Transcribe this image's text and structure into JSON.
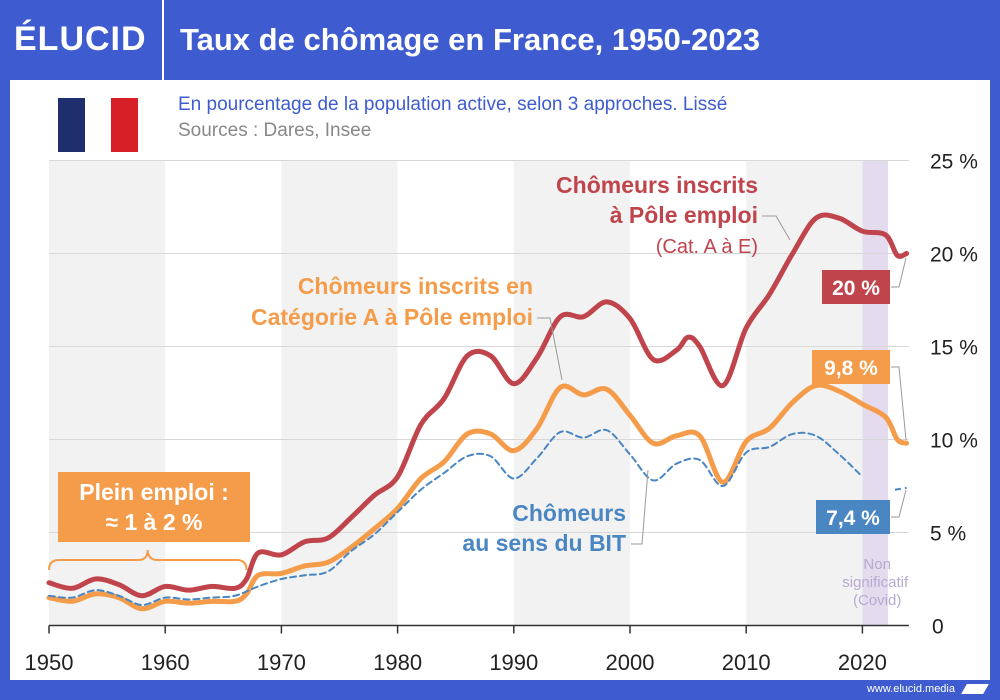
{
  "header": {
    "logo": "ÉLUCID",
    "title": "Taux de chômage en France, 1950-2023"
  },
  "footer": {
    "url": "www.elucid.media"
  },
  "flag": {
    "colors": [
      "#1f2f6e",
      "#ffffff",
      "#d61f26"
    ]
  },
  "chart_data": {
    "type": "line",
    "title": "Taux de chômage en France, 1950-2023",
    "subtitle": "En pourcentage de la population active, selon 3 approches. Lissé",
    "source": "Sources : Dares, Insee",
    "xlim": [
      1950,
      2024
    ],
    "ylim": [
      0,
      25
    ],
    "x_ticks": [
      "1950",
      "1960",
      "1970",
      "1980",
      "1990",
      "2000",
      "2010",
      "2020"
    ],
    "y_ticks": [
      "0",
      "5 %",
      "10 %",
      "15 %",
      "20 %",
      "25 %"
    ],
    "grid": true,
    "series": [
      {
        "name": "Chômeurs inscrits à Pôle emploi (Cat. A à E)",
        "label_lines": [
          "Chômeurs inscrits",
          "à Pôle emploi",
          "(Cat. A à E)"
        ],
        "color": "#c0444b",
        "dashed": false,
        "end_label": "20 %",
        "points": [
          [
            1950,
            2.3
          ],
          [
            1952,
            2.0
          ],
          [
            1954,
            2.5
          ],
          [
            1956,
            2.2
          ],
          [
            1958,
            1.6
          ],
          [
            1960,
            2.1
          ],
          [
            1962,
            1.9
          ],
          [
            1964,
            2.1
          ],
          [
            1966,
            2.0
          ],
          [
            1967,
            2.5
          ],
          [
            1968,
            3.9
          ],
          [
            1970,
            3.8
          ],
          [
            1972,
            4.5
          ],
          [
            1974,
            4.7
          ],
          [
            1976,
            5.8
          ],
          [
            1978,
            7.0
          ],
          [
            1980,
            8.0
          ],
          [
            1982,
            10.8
          ],
          [
            1984,
            12.2
          ],
          [
            1986,
            14.5
          ],
          [
            1988,
            14.5
          ],
          [
            1990,
            13.0
          ],
          [
            1992,
            14.4
          ],
          [
            1994,
            16.6
          ],
          [
            1996,
            16.6
          ],
          [
            1998,
            17.4
          ],
          [
            2000,
            16.5
          ],
          [
            2002,
            14.3
          ],
          [
            2004,
            14.8
          ],
          [
            2005,
            15.5
          ],
          [
            2006,
            15.0
          ],
          [
            2008,
            12.9
          ],
          [
            2010,
            16.0
          ],
          [
            2012,
            17.8
          ],
          [
            2014,
            20.0
          ],
          [
            2016,
            21.9
          ],
          [
            2018,
            21.9
          ],
          [
            2020,
            21.2
          ],
          [
            2022,
            21.0
          ],
          [
            2023,
            19.9
          ],
          [
            2023.8,
            20.0
          ]
        ]
      },
      {
        "name": "Chômeurs inscrits en Catégorie A à Pôle emploi",
        "label_lines": [
          "Chômeurs inscrits en",
          "Catégorie A à Pôle emploi"
        ],
        "color": "#f49c4a",
        "dashed": false,
        "end_label": "9,8 %",
        "points": [
          [
            1950,
            1.5
          ],
          [
            1952,
            1.3
          ],
          [
            1954,
            1.7
          ],
          [
            1956,
            1.5
          ],
          [
            1958,
            0.9
          ],
          [
            1960,
            1.3
          ],
          [
            1962,
            1.2
          ],
          [
            1964,
            1.3
          ],
          [
            1966,
            1.3
          ],
          [
            1967,
            1.7
          ],
          [
            1968,
            2.7
          ],
          [
            1970,
            2.8
          ],
          [
            1972,
            3.2
          ],
          [
            1974,
            3.4
          ],
          [
            1976,
            4.2
          ],
          [
            1978,
            5.2
          ],
          [
            1980,
            6.3
          ],
          [
            1982,
            7.9
          ],
          [
            1984,
            8.8
          ],
          [
            1986,
            10.3
          ],
          [
            1988,
            10.3
          ],
          [
            1990,
            9.4
          ],
          [
            1992,
            10.6
          ],
          [
            1994,
            12.8
          ],
          [
            1996,
            12.4
          ],
          [
            1998,
            12.7
          ],
          [
            2000,
            11.3
          ],
          [
            2002,
            9.8
          ],
          [
            2004,
            10.2
          ],
          [
            2006,
            10.2
          ],
          [
            2008,
            7.7
          ],
          [
            2010,
            9.9
          ],
          [
            2012,
            10.6
          ],
          [
            2014,
            12.0
          ],
          [
            2016,
            12.9
          ],
          [
            2018,
            12.6
          ],
          [
            2020,
            11.9
          ],
          [
            2022,
            11.2
          ],
          [
            2023,
            10.0
          ],
          [
            2023.8,
            9.8
          ]
        ]
      },
      {
        "name": "Chômeurs au sens du BIT",
        "label_lines": [
          "Chômeurs",
          "au sens du BIT"
        ],
        "color": "#4a86c2",
        "dashed": true,
        "end_label": "7,4 %",
        "points": [
          [
            1950,
            1.6
          ],
          [
            1952,
            1.5
          ],
          [
            1954,
            1.9
          ],
          [
            1956,
            1.6
          ],
          [
            1958,
            1.1
          ],
          [
            1960,
            1.5
          ],
          [
            1962,
            1.4
          ],
          [
            1964,
            1.5
          ],
          [
            1966,
            1.6
          ],
          [
            1968,
            2.1
          ],
          [
            1970,
            2.5
          ],
          [
            1972,
            2.7
          ],
          [
            1974,
            2.9
          ],
          [
            1976,
            4.0
          ],
          [
            1978,
            4.9
          ],
          [
            1980,
            6.1
          ],
          [
            1982,
            7.3
          ],
          [
            1984,
            8.2
          ],
          [
            1986,
            9.1
          ],
          [
            1988,
            9.1
          ],
          [
            1990,
            7.9
          ],
          [
            1992,
            9.0
          ],
          [
            1994,
            10.4
          ],
          [
            1996,
            10.1
          ],
          [
            1998,
            10.5
          ],
          [
            2000,
            9.2
          ],
          [
            2002,
            7.8
          ],
          [
            2004,
            8.7
          ],
          [
            2006,
            8.9
          ],
          [
            2008,
            7.5
          ],
          [
            2010,
            9.3
          ],
          [
            2012,
            9.6
          ],
          [
            2014,
            10.3
          ],
          [
            2016,
            10.2
          ],
          [
            2018,
            9.2
          ],
          [
            2020,
            8.0
          ]
        ],
        "tail_points": [
          [
            2022.8,
            7.3
          ],
          [
            2023.8,
            7.4
          ]
        ]
      }
    ],
    "annotations": [
      {
        "lines": [
          "Plein emploi :",
          "≈ 1 à 2 %"
        ],
        "period": [
          1950,
          1967
        ]
      },
      {
        "lines": [
          "Non",
          "significatif",
          "(Covid)"
        ],
        "period": [
          2020,
          2022.2
        ]
      }
    ]
  }
}
